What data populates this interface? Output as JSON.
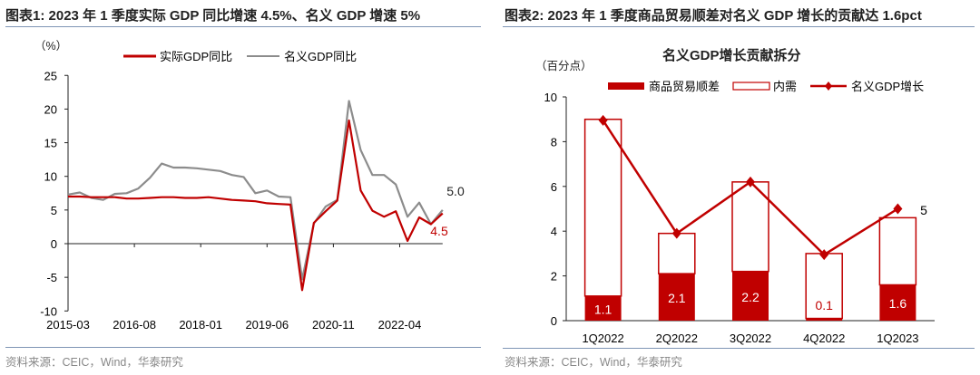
{
  "left": {
    "title": "图表1:  2023 年 1 季度实际 GDP 同比增速 4.5%、名义 GDP 增速 5%",
    "unit": "（%）",
    "source": "资料来源：CEIC，Wind，华泰研究"
  },
  "right": {
    "title": "图表2:  2023 年 1 季度商品贸易顺差对名义 GDP 增长的贡献达 1.6pct",
    "unit": "（百分点）",
    "source": "资料来源：CEIC，Wind，华泰研究"
  },
  "colors": {
    "red": "#c00000",
    "gray": "#8c8c8c"
  },
  "chart_data": [
    {
      "type": "line",
      "title": "",
      "ylabel": "(%)",
      "ylim": [
        -10,
        25
      ],
      "yticks": [
        -10,
        -5,
        0,
        5,
        10,
        15,
        20,
        25
      ],
      "xtick_labels": [
        "2015-03",
        "2016-08",
        "2018-01",
        "2019-06",
        "2020-11",
        "2022-04"
      ],
      "legend": "top-center",
      "series": [
        {
          "name": "实际GDP同比",
          "color": "#c00000",
          "values": [
            7.0,
            7.0,
            6.9,
            6.9,
            6.9,
            6.7,
            6.7,
            6.8,
            6.9,
            6.9,
            6.8,
            6.8,
            6.9,
            6.7,
            6.5,
            6.4,
            6.3,
            6.0,
            5.9,
            5.8,
            -6.9,
            3.1,
            4.8,
            6.4,
            18.3,
            7.9,
            4.9,
            4.0,
            4.8,
            0.4,
            3.9,
            2.9,
            4.5
          ],
          "end_label": "4.5"
        },
        {
          "name": "名义GDP同比",
          "color": "#8c8c8c",
          "values": [
            7.3,
            7.6,
            6.8,
            6.5,
            7.4,
            7.5,
            8.2,
            9.8,
            11.9,
            11.3,
            11.3,
            11.2,
            11.0,
            10.8,
            10.2,
            9.9,
            7.5,
            7.9,
            7.0,
            6.9,
            -5.3,
            3.0,
            5.5,
            6.5,
            21.2,
            13.9,
            10.2,
            10.2,
            8.8,
            4.0,
            6.1,
            2.9,
            5.0
          ],
          "end_label": "5.0"
        }
      ]
    },
    {
      "type": "bar",
      "title": "名义GDP增长贡献拆分",
      "ylabel": "(百分点)",
      "ylim": [
        0,
        10
      ],
      "yticks": [
        0,
        2,
        4,
        6,
        8,
        10
      ],
      "categories": [
        "1Q2022",
        "2Q2022",
        "3Q2022",
        "4Q2022",
        "1Q2023"
      ],
      "legend": "top",
      "series": [
        {
          "name": "商品贸易顺差",
          "kind": "stacked-bar-filled",
          "values": [
            1.1,
            2.1,
            2.2,
            0.1,
            1.6
          ],
          "labels": [
            "1.1",
            "2.1",
            "2.2",
            "0.1",
            "1.6"
          ]
        },
        {
          "name": "内需",
          "kind": "stacked-bar-outline",
          "values": [
            7.9,
            1.8,
            4.0,
            2.9,
            3.0
          ]
        },
        {
          "name": "名义GDP增长",
          "kind": "line-diamond",
          "values": [
            8.95,
            3.9,
            6.2,
            2.95,
            5.0
          ],
          "end_label": "5"
        }
      ]
    }
  ]
}
